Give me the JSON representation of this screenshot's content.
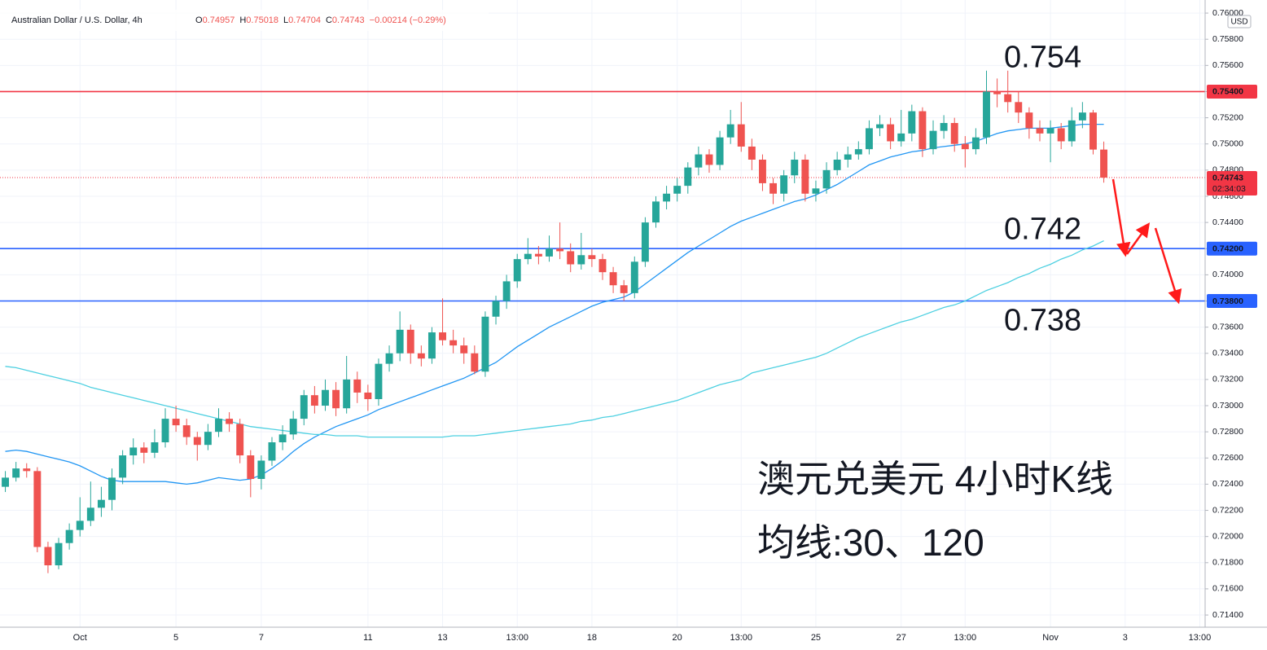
{
  "chart_data": {
    "type": "candlestick",
    "title": "Australian Dollar / U.S. Dollar, 4h",
    "quote": [
      {
        "key": "O",
        "value": "0.74957"
      },
      {
        "key": "H",
        "value": "0.75018"
      },
      {
        "key": "L",
        "value": "0.74704"
      },
      {
        "key": "C",
        "value": "0.74743"
      }
    ],
    "change": "−0.00214 (−0.29%)",
    "currency": "USD",
    "annotations": [
      "澳元兑美元 4小时K线",
      "均线:30、120"
    ],
    "annotation_color": "#f23645",
    "up_color": "#26a69a",
    "down_color": "#ef5350",
    "grid": true,
    "categories": [
      null,
      null,
      null,
      null,
      null,
      null,
      null,
      "Oct",
      null,
      null,
      null,
      null,
      null,
      null,
      null,
      null,
      "5",
      null,
      null,
      null,
      null,
      null,
      null,
      null,
      "7",
      null,
      null,
      null,
      null,
      null,
      null,
      null,
      null,
      null,
      "11",
      null,
      null,
      null,
      null,
      null,
      null,
      "13",
      null,
      null,
      null,
      null,
      null,
      null,
      "13:00",
      null,
      null,
      null,
      null,
      null,
      null,
      "18",
      null,
      null,
      null,
      null,
      null,
      null,
      null,
      "20",
      null,
      null,
      null,
      null,
      null,
      "13:00",
      null,
      null,
      null,
      null,
      null,
      null,
      "25",
      null,
      null,
      null,
      null,
      null,
      null,
      null,
      "27",
      null,
      null,
      null,
      null,
      null,
      "13:00",
      null,
      null,
      null,
      null,
      null,
      null,
      null,
      "Nov",
      null,
      null,
      null,
      null,
      null,
      null,
      "3",
      null,
      null,
      null,
      null,
      null,
      null,
      "13:00"
    ],
    "ohlc": {
      "open": [
        0.7238,
        0.7245,
        0.7252,
        0.725,
        0.7192,
        0.7178,
        0.7195,
        0.7205,
        0.7212,
        0.7222,
        0.7228,
        0.7245,
        0.7262,
        0.7268,
        0.7264,
        0.7272,
        0.729,
        0.7285,
        0.7276,
        0.727,
        0.728,
        0.729,
        0.7286,
        0.7262,
        0.7244,
        0.7258,
        0.7272,
        0.7278,
        0.729,
        0.7308,
        0.73,
        0.7312,
        0.7298,
        0.732,
        0.731,
        0.7305,
        0.7332,
        0.734,
        0.7358,
        0.734,
        0.7336,
        0.7356,
        0.735,
        0.7346,
        0.734,
        0.7326,
        0.7368,
        0.738,
        0.7395,
        0.7412,
        0.7416,
        0.7414,
        0.742,
        0.7418,
        0.7408,
        0.7415,
        0.7412,
        0.7402,
        0.7392,
        0.7386,
        0.741,
        0.744,
        0.7456,
        0.7462,
        0.7468,
        0.7482,
        0.7492,
        0.7484,
        0.7505,
        0.7515,
        0.7498,
        0.7488,
        0.747,
        0.7462,
        0.7476,
        0.7488,
        0.7462,
        0.7466,
        0.748,
        0.7488,
        0.7492,
        0.7496,
        0.7512,
        0.7515,
        0.7502,
        0.7508,
        0.7525,
        0.7496,
        0.751,
        0.7516,
        0.75,
        0.7496,
        0.7505,
        0.754,
        0.7538,
        0.7532,
        0.7524,
        0.7512,
        0.7508,
        0.7512,
        0.7502,
        0.7518,
        0.7524,
        0.74957,
        null,
        null,
        null,
        null,
        null,
        null,
        null,
        null,
        null
      ],
      "high": [
        0.725,
        0.7257,
        0.7256,
        0.7253,
        0.7196,
        0.7199,
        0.721,
        0.723,
        0.7242,
        0.7238,
        0.7252,
        0.7266,
        0.7275,
        0.7272,
        0.7282,
        0.7298,
        0.73,
        0.729,
        0.728,
        0.7286,
        0.7298,
        0.7295,
        0.729,
        0.7266,
        0.7262,
        0.7276,
        0.7285,
        0.7296,
        0.7312,
        0.7315,
        0.732,
        0.7318,
        0.7338,
        0.7326,
        0.7316,
        0.7336,
        0.7346,
        0.7372,
        0.7362,
        0.7346,
        0.736,
        0.7382,
        0.7358,
        0.7352,
        0.7346,
        0.7372,
        0.7384,
        0.74,
        0.7416,
        0.7428,
        0.7422,
        0.743,
        0.744,
        0.7424,
        0.7432,
        0.742,
        0.7416,
        0.7406,
        0.7396,
        0.7414,
        0.7444,
        0.746,
        0.7468,
        0.7474,
        0.7486,
        0.7498,
        0.7496,
        0.751,
        0.7526,
        0.7532,
        0.7504,
        0.7492,
        0.7474,
        0.748,
        0.7494,
        0.7492,
        0.7472,
        0.7486,
        0.7494,
        0.7498,
        0.7502,
        0.7518,
        0.7522,
        0.752,
        0.7526,
        0.753,
        0.7528,
        0.7518,
        0.7522,
        0.752,
        0.7506,
        0.7512,
        0.7556,
        0.755,
        0.7556,
        0.754,
        0.7528,
        0.7518,
        0.7518,
        0.7516,
        0.7528,
        0.7532,
        0.7526,
        0.75018,
        null,
        null,
        null,
        null,
        null,
        null,
        null,
        null,
        null
      ],
      "low": [
        0.7234,
        0.7242,
        0.7245,
        0.7188,
        0.7172,
        0.7175,
        0.719,
        0.72,
        0.7208,
        0.7215,
        0.722,
        0.724,
        0.7255,
        0.7256,
        0.726,
        0.7268,
        0.728,
        0.727,
        0.7258,
        0.7266,
        0.7276,
        0.728,
        0.7256,
        0.723,
        0.7236,
        0.7254,
        0.7266,
        0.7274,
        0.7285,
        0.7294,
        0.7296,
        0.7292,
        0.7294,
        0.7302,
        0.7296,
        0.73,
        0.7326,
        0.7334,
        0.7332,
        0.733,
        0.7332,
        0.7346,
        0.734,
        0.7332,
        0.7324,
        0.7322,
        0.7362,
        0.7374,
        0.739,
        0.7408,
        0.7408,
        0.741,
        0.7412,
        0.7402,
        0.7404,
        0.7406,
        0.7396,
        0.7386,
        0.738,
        0.7382,
        0.7406,
        0.7436,
        0.745,
        0.7456,
        0.7462,
        0.7476,
        0.7478,
        0.748,
        0.75,
        0.7494,
        0.748,
        0.7464,
        0.7454,
        0.7456,
        0.747,
        0.7456,
        0.7456,
        0.7462,
        0.7476,
        0.7482,
        0.7488,
        0.7492,
        0.7506,
        0.7496,
        0.7498,
        0.7502,
        0.749,
        0.7492,
        0.7504,
        0.7494,
        0.7482,
        0.7492,
        0.75,
        0.7528,
        0.7524,
        0.7516,
        0.7504,
        0.7502,
        0.7486,
        0.7496,
        0.7498,
        0.7512,
        0.7492,
        0.74704,
        null,
        null,
        null,
        null,
        null,
        null,
        null,
        null,
        null
      ],
      "close": [
        0.7245,
        0.7252,
        0.725,
        0.7192,
        0.7178,
        0.7195,
        0.7205,
        0.7212,
        0.7222,
        0.7228,
        0.7245,
        0.7262,
        0.7268,
        0.7264,
        0.7272,
        0.729,
        0.7285,
        0.7276,
        0.727,
        0.728,
        0.729,
        0.7286,
        0.7262,
        0.7244,
        0.7258,
        0.7272,
        0.7278,
        0.729,
        0.7308,
        0.73,
        0.7312,
        0.7298,
        0.732,
        0.731,
        0.7305,
        0.7332,
        0.734,
        0.7358,
        0.734,
        0.7336,
        0.7356,
        0.735,
        0.7346,
        0.734,
        0.7326,
        0.7368,
        0.738,
        0.7395,
        0.7412,
        0.7416,
        0.7414,
        0.742,
        0.7418,
        0.7408,
        0.7415,
        0.7412,
        0.7402,
        0.7392,
        0.7386,
        0.741,
        0.744,
        0.7456,
        0.7462,
        0.7468,
        0.7482,
        0.7492,
        0.7484,
        0.7505,
        0.7515,
        0.7498,
        0.7488,
        0.747,
        0.7462,
        0.7476,
        0.7488,
        0.7462,
        0.7466,
        0.748,
        0.7488,
        0.7492,
        0.7496,
        0.7512,
        0.7515,
        0.7502,
        0.7508,
        0.7525,
        0.7496,
        0.751,
        0.7516,
        0.75,
        0.7496,
        0.7505,
        0.754,
        0.7538,
        0.7532,
        0.7524,
        0.7512,
        0.7508,
        0.7512,
        0.7502,
        0.7518,
        0.7524,
        0.74957,
        0.74743,
        null,
        null,
        null,
        null,
        null,
        null,
        null,
        null,
        null
      ]
    },
    "moving_averages": [
      {
        "color": "#2196f3",
        "values": [
          0.7265,
          0.7266,
          0.7265,
          0.7263,
          0.7261,
          0.7259,
          0.7257,
          0.7254,
          0.725,
          0.7246,
          0.7243,
          0.7242,
          0.7242,
          0.7242,
          0.7242,
          0.7242,
          0.7241,
          0.724,
          0.7241,
          0.7243,
          0.7245,
          0.7244,
          0.7243,
          0.7244,
          0.7247,
          0.7252,
          0.7258,
          0.7265,
          0.7271,
          0.7276,
          0.728,
          0.7284,
          0.7287,
          0.729,
          0.7293,
          0.7297,
          0.73,
          0.7303,
          0.7306,
          0.7309,
          0.7312,
          0.7315,
          0.7318,
          0.7321,
          0.7325,
          0.7329,
          0.7333,
          0.7339,
          0.7345,
          0.735,
          0.7355,
          0.736,
          0.7364,
          0.7368,
          0.7372,
          0.7376,
          0.7379,
          0.7381,
          0.7383,
          0.7387,
          0.7393,
          0.7399,
          0.7405,
          0.7411,
          0.7417,
          0.7422,
          0.7427,
          0.7432,
          0.7437,
          0.7441,
          0.7444,
          0.7447,
          0.745,
          0.7453,
          0.7456,
          0.7458,
          0.7461,
          0.7465,
          0.7469,
          0.7474,
          0.7479,
          0.7484,
          0.7487,
          0.749,
          0.7492,
          0.7494,
          0.7495,
          0.7497,
          0.7498,
          0.7499,
          0.75,
          0.7502,
          0.7505,
          0.7508,
          0.751,
          0.7511,
          0.7512,
          0.7512,
          0.7512,
          0.7513,
          0.7514,
          0.7515,
          0.7515,
          0.7515,
          null,
          null,
          null,
          null,
          null,
          null,
          null,
          null,
          null
        ]
      },
      {
        "color": "#4dd0e1",
        "values": [
          0.733,
          0.7329,
          0.7327,
          0.7325,
          0.7323,
          0.7321,
          0.7319,
          0.7317,
          0.7314,
          0.7312,
          0.731,
          0.7308,
          0.7306,
          0.7304,
          0.7302,
          0.73,
          0.7298,
          0.7296,
          0.7294,
          0.7292,
          0.729,
          0.7288,
          0.7286,
          0.7284,
          0.7283,
          0.7282,
          0.7281,
          0.728,
          0.7279,
          0.7278,
          0.7278,
          0.7277,
          0.7277,
          0.7277,
          0.7276,
          0.7276,
          0.7276,
          0.7276,
          0.7276,
          0.7276,
          0.7276,
          0.7276,
          0.7277,
          0.7277,
          0.7277,
          0.7278,
          0.7279,
          0.728,
          0.7281,
          0.7282,
          0.7283,
          0.7284,
          0.7285,
          0.7286,
          0.7288,
          0.7289,
          0.7291,
          0.7292,
          0.7294,
          0.7296,
          0.7298,
          0.73,
          0.7302,
          0.7304,
          0.7307,
          0.731,
          0.7313,
          0.7316,
          0.7318,
          0.732,
          0.7325,
          0.7327,
          0.7329,
          0.7331,
          0.7333,
          0.7335,
          0.7337,
          0.734,
          0.7344,
          0.7348,
          0.7352,
          0.7355,
          0.7358,
          0.7361,
          0.7364,
          0.7366,
          0.7369,
          0.7372,
          0.7375,
          0.7377,
          0.738,
          0.7384,
          0.7388,
          0.7391,
          0.7394,
          0.7398,
          0.7401,
          0.7405,
          0.7408,
          0.7412,
          0.7415,
          0.7419,
          0.7422,
          0.7426,
          null,
          null,
          null,
          null,
          null,
          null,
          null,
          null,
          null
        ]
      }
    ],
    "levels": [
      {
        "value": 0.754,
        "label": "0.75400",
        "annotation": "0.754",
        "annotation_side": "above",
        "color": "#f23645",
        "style": "solid"
      },
      {
        "value": 0.742,
        "label": "0.74200",
        "annotation": "0.742",
        "annotation_side": "above",
        "color": "#2962ff",
        "style": "solid"
      },
      {
        "value": 0.738,
        "label": "0.73800",
        "annotation": "0.738",
        "annotation_side": "below",
        "color": "#2962ff",
        "style": "solid"
      },
      {
        "value": 0.74743,
        "label": "0.74743",
        "countdown": "02:34:03",
        "color": "#f23645",
        "style": "dotted"
      }
    ],
    "ylim": [
      0.71307,
      0.761
    ],
    "yticks": [
      {
        "value": 0.714,
        "label": "0.71400"
      },
      {
        "value": 0.716,
        "label": "0.71600"
      },
      {
        "value": 0.718,
        "label": "0.71800"
      },
      {
        "value": 0.72,
        "label": "0.72000"
      },
      {
        "value": 0.722,
        "label": "0.72200"
      },
      {
        "value": 0.724,
        "label": "0.72400"
      },
      {
        "value": 0.726,
        "label": "0.72600"
      },
      {
        "value": 0.728,
        "label": "0.72800"
      },
      {
        "value": 0.73,
        "label": "0.73000"
      },
      {
        "value": 0.732,
        "label": "0.73200"
      },
      {
        "value": 0.734,
        "label": "0.73400"
      },
      {
        "value": 0.736,
        "label": "0.73600"
      },
      {
        "value": 0.738,
        "label": "0.73800"
      },
      {
        "value": 0.74,
        "label": "0.74000"
      },
      {
        "value": 0.742,
        "label": "0.74200"
      },
      {
        "value": 0.744,
        "label": "0.74400"
      },
      {
        "value": 0.746,
        "label": "0.74600"
      },
      {
        "value": 0.748,
        "label": "0.74800"
      },
      {
        "value": 0.75,
        "label": "0.75000"
      },
      {
        "value": 0.752,
        "label": "0.75200"
      },
      {
        "value": 0.754,
        "label": "0.75400"
      },
      {
        "value": 0.756,
        "label": "0.75600"
      },
      {
        "value": 0.758,
        "label": "0.75800"
      },
      {
        "value": 0.76,
        "label": "0.76000"
      }
    ]
  }
}
